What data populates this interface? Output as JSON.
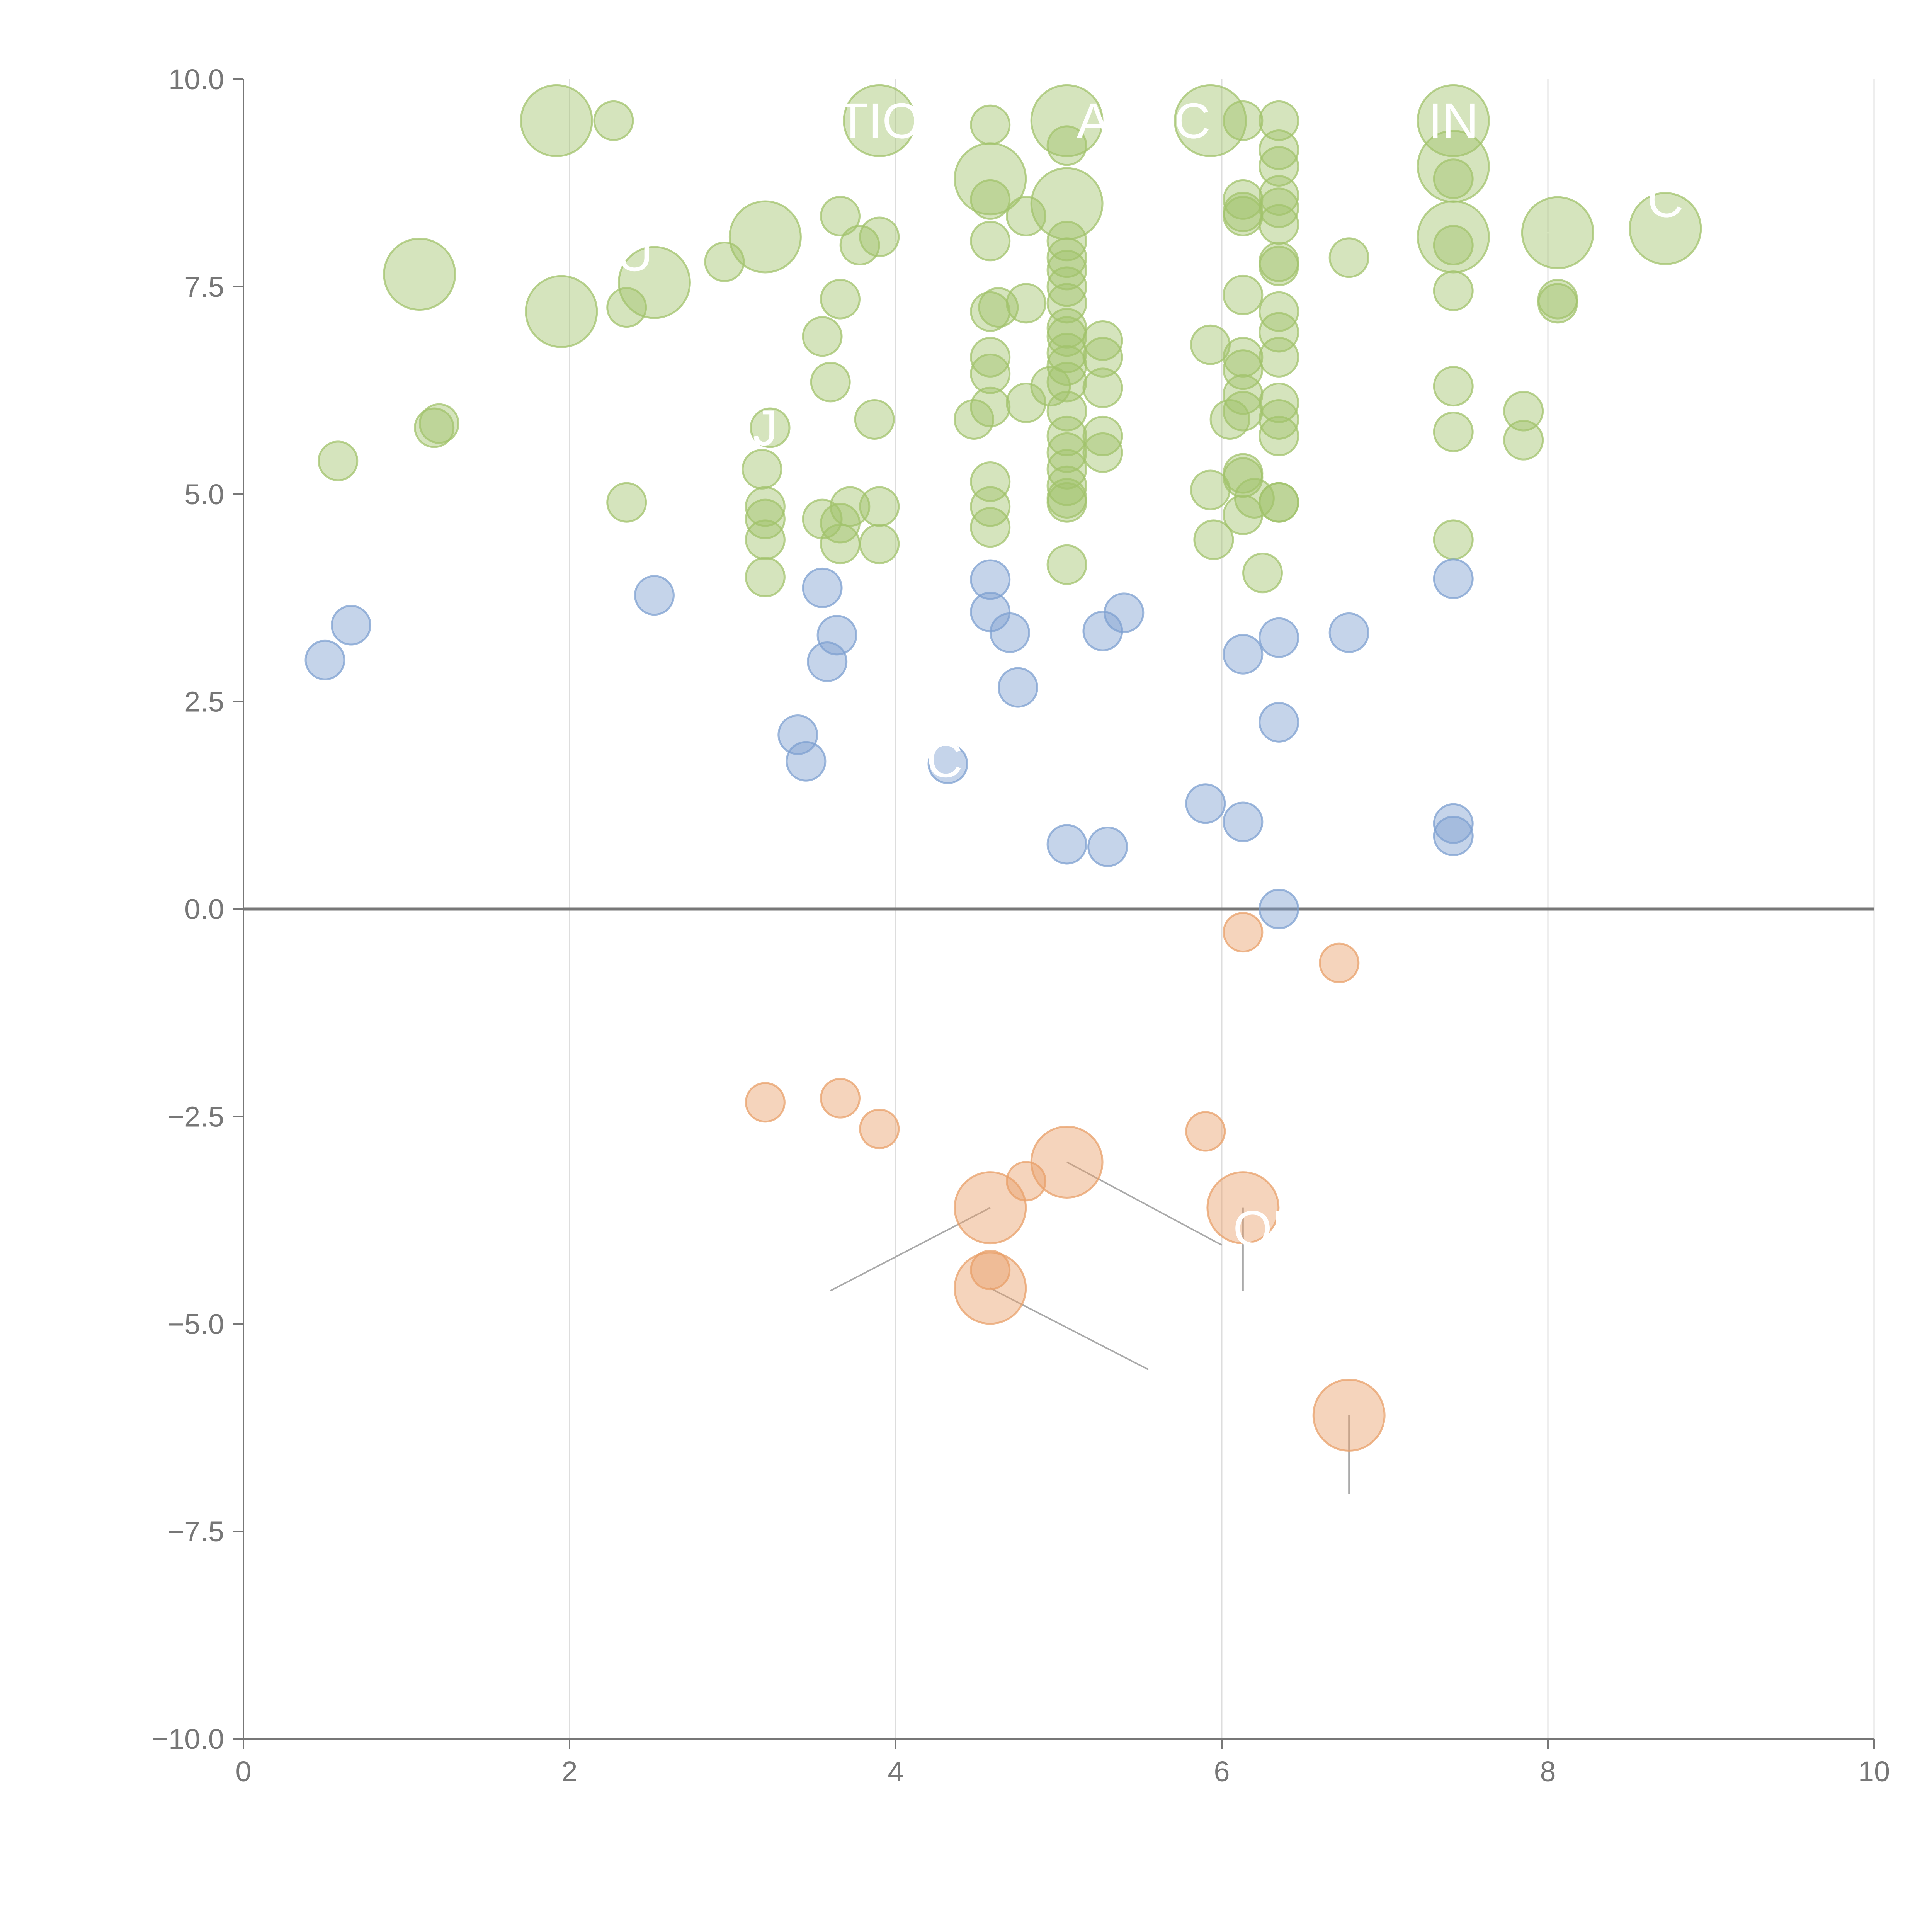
{
  "chart_data": {
    "type": "scatter",
    "title": "",
    "xlabel": "",
    "ylabel": "",
    "xlim": [
      0,
      10
    ],
    "ylim": [
      -10,
      10
    ],
    "x_ticks": [
      "0",
      "2",
      "4",
      "6",
      "8",
      "10"
    ],
    "y_ticks": [
      "10.0",
      "7.5",
      "5.0",
      "2.5",
      "0.0",
      "−2.5",
      "−5.0",
      "−7.5",
      "−10.0"
    ],
    "x_tick_values": [
      0,
      2,
      4,
      6,
      8,
      10
    ],
    "y_tick_values": [
      10,
      7.5,
      5,
      2.5,
      0,
      -2.5,
      -5,
      -7.5,
      -10
    ],
    "grid": "vertical",
    "baseline_y": 0,
    "series_colors": {
      "high": "#a2c36c",
      "mid": "#7ea0d0",
      "negative": "#e8a06a"
    },
    "series": [
      {
        "key": "high",
        "points": [
          [
            1.92,
            9.5,
            3
          ],
          [
            2.27,
            9.5,
            1
          ],
          [
            3.9,
            9.5,
            3
          ],
          [
            5.05,
            9.5,
            3
          ],
          [
            5.93,
            9.5,
            3
          ],
          [
            7.42,
            9.5,
            3
          ],
          [
            4.58,
            9.45,
            1
          ],
          [
            6.13,
            9.5,
            1
          ],
          [
            6.35,
            9.5,
            1
          ],
          [
            6.35,
            9.15,
            1
          ],
          [
            6.35,
            8.95,
            1
          ],
          [
            5.05,
            9.2,
            1
          ],
          [
            4.58,
            8.8,
            3
          ],
          [
            7.42,
            8.95,
            3
          ],
          [
            7.42,
            8.8,
            1
          ],
          [
            4.58,
            8.55,
            1
          ],
          [
            5.05,
            8.5,
            3
          ],
          [
            6.13,
            8.55,
            1
          ],
          [
            6.35,
            8.6,
            1
          ],
          [
            6.35,
            8.45,
            1
          ],
          [
            6.13,
            8.4,
            1
          ],
          [
            3.66,
            8.35,
            1
          ],
          [
            4.8,
            8.35,
            1
          ],
          [
            6.13,
            8.35,
            1
          ],
          [
            6.35,
            8.25,
            1
          ],
          [
            3.2,
            8.1,
            3
          ],
          [
            3.9,
            8.1,
            1
          ],
          [
            3.78,
            8.0,
            1
          ],
          [
            4.58,
            8.05,
            1
          ],
          [
            5.05,
            8.05,
            1
          ],
          [
            7.42,
            8.1,
            3
          ],
          [
            7.42,
            8.0,
            1
          ],
          [
            8.06,
            8.15,
            3
          ],
          [
            8.72,
            8.2,
            3
          ],
          [
            1.08,
            7.65,
            3
          ],
          [
            2.52,
            7.55,
            3
          ],
          [
            2.95,
            7.8,
            1
          ],
          [
            5.05,
            7.85,
            1
          ],
          [
            6.35,
            7.8,
            1
          ],
          [
            6.35,
            7.75,
            1
          ],
          [
            6.78,
            7.85,
            1
          ],
          [
            5.05,
            7.7,
            1
          ],
          [
            5.05,
            7.5,
            1
          ],
          [
            1.95,
            7.2,
            3
          ],
          [
            2.35,
            7.25,
            1
          ],
          [
            3.66,
            7.35,
            1
          ],
          [
            4.58,
            7.2,
            1
          ],
          [
            4.63,
            7.25,
            1
          ],
          [
            4.8,
            7.3,
            1
          ],
          [
            5.05,
            7.3,
            1
          ],
          [
            6.13,
            7.4,
            1
          ],
          [
            7.42,
            7.45,
            1
          ],
          [
            8.06,
            7.35,
            1
          ],
          [
            8.06,
            7.3,
            1
          ],
          [
            6.35,
            7.2,
            1
          ],
          [
            3.55,
            6.9,
            1
          ],
          [
            5.05,
            7.0,
            1
          ],
          [
            5.05,
            6.9,
            1
          ],
          [
            6.35,
            6.95,
            1
          ],
          [
            5.27,
            6.85,
            1
          ],
          [
            5.93,
            6.8,
            1
          ],
          [
            6.13,
            6.65,
            1
          ],
          [
            6.35,
            6.65,
            1
          ],
          [
            4.58,
            6.65,
            1
          ],
          [
            4.58,
            6.45,
            1
          ],
          [
            5.05,
            6.7,
            1
          ],
          [
            5.05,
            6.55,
            1
          ],
          [
            5.27,
            6.65,
            1
          ],
          [
            6.13,
            6.5,
            1
          ],
          [
            5.05,
            6.35,
            1
          ],
          [
            3.6,
            6.35,
            1
          ],
          [
            4.95,
            6.3,
            1
          ],
          [
            5.27,
            6.28,
            1
          ],
          [
            7.42,
            6.3,
            1
          ],
          [
            6.35,
            6.1,
            1
          ],
          [
            6.13,
            6.2,
            1
          ],
          [
            6.13,
            6.0,
            1
          ],
          [
            4.58,
            6.05,
            1
          ],
          [
            4.8,
            6.1,
            1
          ],
          [
            5.05,
            6.0,
            1
          ],
          [
            7.85,
            6.0,
            1
          ],
          [
            1.17,
            5.8,
            1
          ],
          [
            1.2,
            5.85,
            1
          ],
          [
            3.23,
            5.8,
            1
          ],
          [
            3.87,
            5.9,
            1
          ],
          [
            4.48,
            5.9,
            1
          ],
          [
            6.05,
            5.9,
            1
          ],
          [
            6.35,
            5.9,
            1
          ],
          [
            6.35,
            5.7,
            1
          ],
          [
            7.42,
            5.75,
            1
          ],
          [
            5.05,
            5.7,
            1
          ],
          [
            5.27,
            5.7,
            1
          ],
          [
            7.85,
            5.65,
            1
          ],
          [
            5.05,
            5.5,
            1
          ],
          [
            5.27,
            5.5,
            1
          ],
          [
            0.58,
            5.4,
            1
          ],
          [
            3.18,
            5.3,
            1
          ],
          [
            4.58,
            5.15,
            1
          ],
          [
            5.05,
            5.3,
            1
          ],
          [
            6.13,
            5.2,
            1
          ],
          [
            6.13,
            5.25,
            1
          ],
          [
            5.05,
            5.1,
            1
          ],
          [
            5.93,
            5.05,
            1
          ],
          [
            6.2,
            4.95,
            1
          ],
          [
            6.35,
            4.9,
            1
          ],
          [
            6.35,
            4.9,
            1
          ],
          [
            5.05,
            4.95,
            1
          ],
          [
            5.05,
            4.9,
            1
          ],
          [
            2.35,
            4.9,
            1
          ],
          [
            3.2,
            4.85,
            1
          ],
          [
            3.72,
            4.85,
            1
          ],
          [
            3.9,
            4.85,
            1
          ],
          [
            4.58,
            4.85,
            1
          ],
          [
            6.13,
            4.75,
            1
          ],
          [
            3.55,
            4.7,
            1
          ],
          [
            3.2,
            4.7,
            1
          ],
          [
            3.66,
            4.65,
            1
          ],
          [
            4.58,
            4.6,
            1
          ],
          [
            3.2,
            4.45,
            1
          ],
          [
            3.66,
            4.4,
            1
          ],
          [
            3.9,
            4.4,
            1
          ],
          [
            5.95,
            4.45,
            1
          ],
          [
            7.42,
            4.45,
            1
          ],
          [
            5.05,
            4.15,
            1
          ],
          [
            6.25,
            4.05,
            1
          ],
          [
            3.2,
            4.0,
            1
          ]
        ]
      },
      {
        "key": "mid",
        "points": [
          [
            0.5,
            3.0,
            1
          ],
          [
            0.66,
            3.42,
            1
          ],
          [
            2.52,
            3.78,
            1
          ],
          [
            3.55,
            3.87,
            1
          ],
          [
            3.64,
            3.3,
            1
          ],
          [
            3.58,
            2.98,
            1
          ],
          [
            3.4,
            2.1,
            1
          ],
          [
            3.45,
            1.78,
            1
          ],
          [
            4.32,
            1.75,
            1
          ],
          [
            4.58,
            3.97,
            1
          ],
          [
            4.58,
            3.58,
            1
          ],
          [
            4.7,
            3.33,
            1
          ],
          [
            4.75,
            2.67,
            1
          ],
          [
            5.05,
            0.78,
            1
          ],
          [
            5.3,
            0.75,
            1
          ],
          [
            5.27,
            3.35,
            1
          ],
          [
            5.4,
            3.57,
            1
          ],
          [
            5.9,
            1.27,
            1
          ],
          [
            6.13,
            1.05,
            1
          ],
          [
            6.13,
            3.07,
            1
          ],
          [
            6.35,
            3.27,
            1
          ],
          [
            6.35,
            2.25,
            1
          ],
          [
            6.35,
            0.0,
            1
          ],
          [
            6.78,
            3.33,
            1
          ],
          [
            7.42,
            3.98,
            1
          ],
          [
            7.42,
            1.03,
            1
          ],
          [
            7.42,
            0.88,
            1
          ]
        ]
      },
      {
        "key": "negative",
        "points": [
          [
            6.13,
            -0.28,
            1
          ],
          [
            6.72,
            -0.65,
            1
          ],
          [
            3.2,
            -2.33,
            1
          ],
          [
            3.66,
            -2.28,
            1
          ],
          [
            3.9,
            -2.65,
            1
          ],
          [
            5.9,
            -2.68,
            1
          ],
          [
            4.8,
            -3.28,
            1
          ],
          [
            5.05,
            -3.05,
            3
          ],
          [
            4.58,
            -3.6,
            3
          ],
          [
            6.13,
            -3.6,
            3
          ],
          [
            4.58,
            -4.35,
            1
          ],
          [
            4.58,
            -4.57,
            3
          ],
          [
            6.78,
            -6.1,
            3
          ]
        ]
      }
    ],
    "labels": [
      {
        "text": "TIO",
        "x": 3.9,
        "y": 9.5
      },
      {
        "text": "A  RC",
        "x": 5.52,
        "y": 9.5
      },
      {
        "text": "IN",
        "x": 7.42,
        "y": 9.5
      },
      {
        "text": "U",
        "x": 2.4,
        "y": 7.9
      },
      {
        "text": "J",
        "x": 3.2,
        "y": 5.8
      },
      {
        "text": "C",
        "x": 4.3,
        "y": 1.8
      },
      {
        "text": "C",
        "x": 8.72,
        "y": 8.55
      },
      {
        "text": "ON",
        "x": 6.3,
        "y": -3.85
      }
    ]
  }
}
